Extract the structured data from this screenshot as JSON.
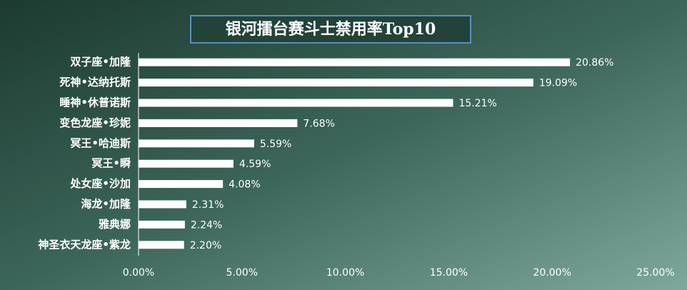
{
  "chart_data": {
    "type": "bar",
    "orientation": "horizontal",
    "title": "银河擂台赛斗士禁用率Top10",
    "categories": [
      "双子座•加隆",
      "死神•达纳托斯",
      "睡神•休普诺斯",
      "变色龙座•珍妮",
      "冥王•哈迪斯",
      "冥王•瞬",
      "处女座•沙加",
      "海龙•加隆",
      "雅典娜",
      "神圣衣天龙座•紫龙"
    ],
    "values": [
      20.86,
      19.09,
      15.21,
      7.68,
      5.59,
      4.59,
      4.08,
      2.31,
      2.24,
      2.2
    ],
    "value_labels": [
      "20.86%",
      "19.09%",
      "15.21%",
      "7.68%",
      "5.59%",
      "4.59%",
      "4.08%",
      "2.31%",
      "2.24%",
      "2.20%"
    ],
    "color": "#ffffff",
    "xlim": [
      0,
      25
    ],
    "xticks": [
      {
        "value": 0,
        "label": "0.00%"
      },
      {
        "value": 5,
        "label": "5.00%"
      },
      {
        "value": 10,
        "label": "10.00%"
      },
      {
        "value": 15,
        "label": "15.00%"
      },
      {
        "value": 20,
        "label": "20.00%"
      },
      {
        "value": 25,
        "label": "25.00%"
      }
    ],
    "grid": false
  }
}
